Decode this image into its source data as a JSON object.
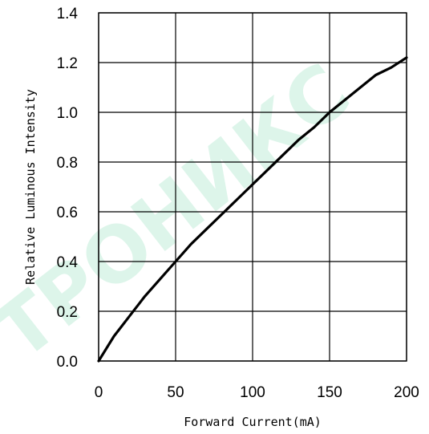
{
  "watermark": {
    "text": "ТРОНИКС",
    "color": "#2ec27e"
  },
  "chart_data": {
    "type": "line",
    "title": "",
    "xlabel": "Forward Current(mA)",
    "ylabel": "Relative Luminous Intensity",
    "xlim": [
      0,
      200
    ],
    "ylim": [
      0,
      1.4
    ],
    "xticks": [
      0,
      50,
      100,
      150,
      200
    ],
    "yticks": [
      0.0,
      0.2,
      0.4,
      0.6,
      0.8,
      1.0,
      1.2,
      1.4
    ],
    "xtick_labels": [
      "0",
      "50",
      "100",
      "150",
      "200"
    ],
    "ytick_labels": [
      "0.0",
      "0.2",
      "0.4",
      "0.6",
      "0.8",
      "1.0",
      "1.2",
      "1.4"
    ],
    "grid": true,
    "legend": "none",
    "series": [
      {
        "color": "#000000",
        "x": [
          0,
          5,
          10,
          15,
          20,
          25,
          30,
          40,
          50,
          60,
          70,
          80,
          90,
          100,
          110,
          120,
          130,
          140,
          150,
          160,
          170,
          180,
          190,
          200
        ],
        "y": [
          0.0,
          0.05,
          0.1,
          0.14,
          0.18,
          0.22,
          0.26,
          0.33,
          0.4,
          0.47,
          0.53,
          0.59,
          0.65,
          0.71,
          0.77,
          0.83,
          0.89,
          0.94,
          1.0,
          1.05,
          1.1,
          1.15,
          1.18,
          1.22
        ]
      }
    ]
  }
}
